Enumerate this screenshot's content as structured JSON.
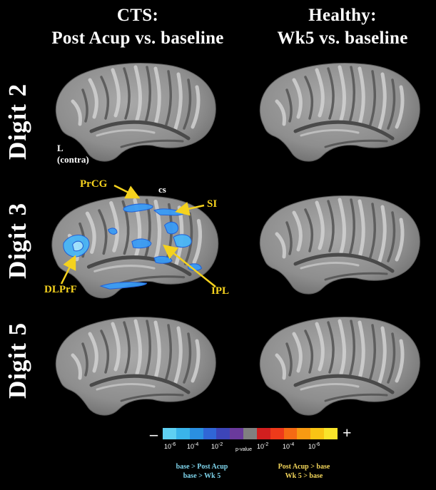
{
  "columns": [
    {
      "line1": "CTS:",
      "line2": "Post Acup vs. baseline"
    },
    {
      "line1": "Healthy:",
      "line2": "Wk5 vs. baseline"
    }
  ],
  "rows": [
    "Digit 2",
    "Digit 3",
    "Digit 5"
  ],
  "hemisphere_label": {
    "line1": "L",
    "line2": "(contra)"
  },
  "annotations": {
    "prcg": "PrCG",
    "cs": "cs",
    "si": "SI",
    "dlprf": "DLPrF",
    "ipl": "IPL"
  },
  "colorbar": {
    "minus": "–",
    "plus": "+",
    "ticks_left": [
      {
        "base": "10",
        "exp": "-6"
      },
      {
        "base": "10",
        "exp": "-4"
      },
      {
        "base": "10",
        "exp": "-2"
      }
    ],
    "center_label": "p-value",
    "ticks_right": [
      {
        "base": "10",
        "exp": "-2"
      },
      {
        "base": "10",
        "exp": "-4"
      },
      {
        "base": "10",
        "exp": "-6"
      }
    ],
    "colors": [
      "#5fd0f2",
      "#3ab4ea",
      "#2a8fe0",
      "#3066d6",
      "#3d45b8",
      "#6a3a9c",
      "#808080",
      "#d21f1f",
      "#ee3a1a",
      "#f56a14",
      "#f89a12",
      "#f9c414",
      "#f9e42a"
    ]
  },
  "legend": {
    "negative_line1": "base > Post Acup",
    "negative_line2": "base > Wk 5",
    "positive_line1": "Post Acup > base",
    "positive_line2": "Wk 5 > base",
    "negative_color": "#7fd6ee",
    "positive_color": "#f3d65a"
  },
  "colors": {
    "background": "#000000",
    "annotation": "#f5d21e",
    "activation": "#3aa0ff"
  }
}
